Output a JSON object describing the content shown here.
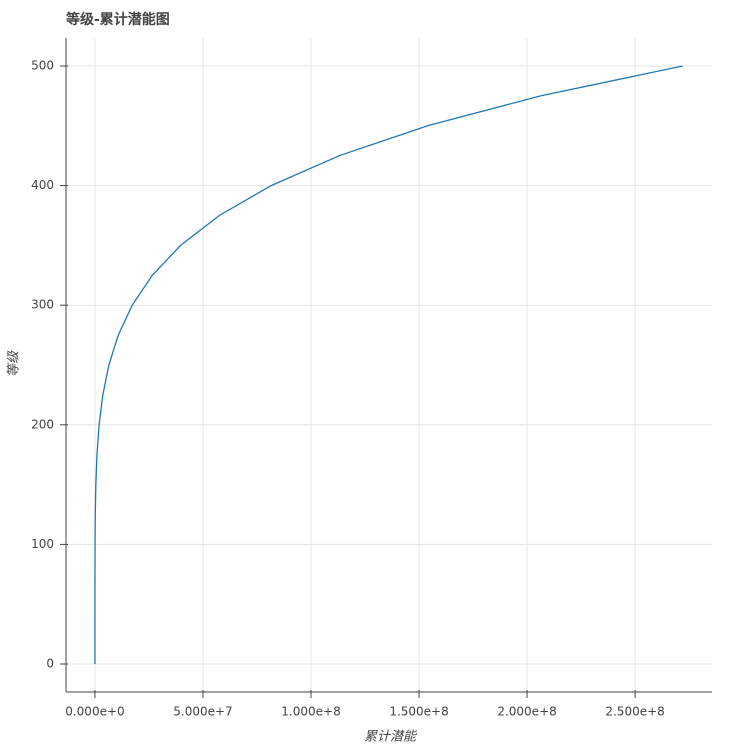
{
  "chart_data": {
    "type": "line",
    "title": "等级-累计潜能图",
    "x_label": "累计潜能",
    "y_label": "等级",
    "x": [
      0,
      26,
      1088,
      9710,
      45700,
      152000,
      408000,
      938000,
      1930000,
      3650000,
      6440000,
      10790000,
      17250000,
      26570000,
      39630000,
      57560000,
      81520000,
      113100000,
      153950000,
      206200000,
      272000000
    ],
    "series": [
      {
        "name": "等级",
        "color": "#1f77b4",
        "values": [
          0,
          25,
          50,
          75,
          100,
          125,
          150,
          175,
          200,
          225,
          250,
          275,
          300,
          325,
          350,
          375,
          400,
          425,
          450,
          475,
          500
        ]
      }
    ],
    "xlim": [
      -13400000,
      285600000
    ],
    "ylim": [
      -23.4,
      523.4
    ],
    "xticks": [
      {
        "value": 0,
        "label": "0.000e+0"
      },
      {
        "value": 50000000,
        "label": "5.000e+7"
      },
      {
        "value": 100000000,
        "label": "1.000e+8"
      },
      {
        "value": 150000000,
        "label": "1.500e+8"
      },
      {
        "value": 200000000,
        "label": "2.000e+8"
      },
      {
        "value": 250000000,
        "label": "2.500e+8"
      }
    ],
    "yticks": [
      0,
      100,
      200,
      300,
      400,
      500
    ],
    "grid": true
  }
}
